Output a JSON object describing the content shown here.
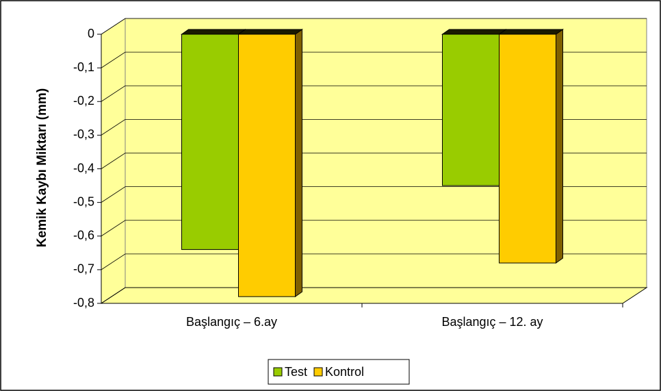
{
  "chart_data": {
    "type": "bar",
    "y_label": "Kemik Kaybı Miktarı (mm)",
    "categories": [
      "Başlangıç –  6.ay",
      "Başlangıç – 12. ay"
    ],
    "series": [
      {
        "name": "Test",
        "color": "#99cc00",
        "values": [
          -0.64,
          -0.45
        ]
      },
      {
        "name": "Kontrol",
        "color": "#ffcc00",
        "values": [
          -0.78,
          -0.68
        ]
      }
    ],
    "ylim": [
      -0.8,
      0
    ],
    "yticks": [
      0,
      {
        "value": -0.1,
        "label": "-0,1"
      },
      {
        "value": -0.2,
        "label": "-0,2"
      },
      {
        "value": -0.3,
        "label": "-0,3"
      },
      {
        "value": -0.4,
        "label": "-0,4"
      },
      {
        "value": -0.5,
        "label": "-0,5"
      },
      {
        "value": -0.6,
        "label": "-0,6"
      },
      {
        "value": -0.7,
        "label": "-0,7"
      },
      {
        "value": -0.8,
        "label": "-0,8"
      }
    ],
    "grid": true,
    "legend": "bottom"
  }
}
